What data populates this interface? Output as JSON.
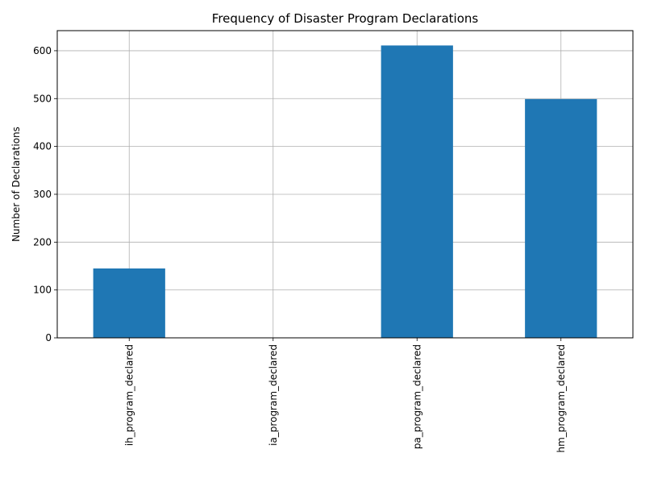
{
  "chart_data": {
    "type": "bar",
    "title": "Frequency of Disaster Program Declarations",
    "xlabel": "",
    "ylabel": "Number of Declarations",
    "categories": [
      "ih_program_declared",
      "ia_program_declared",
      "pa_program_declared",
      "hm_program_declared"
    ],
    "values": [
      145,
      0,
      611,
      499
    ],
    "ylim": [
      0,
      642
    ],
    "yticks": [
      0,
      100,
      200,
      300,
      400,
      500,
      600
    ],
    "grid": true,
    "bar_color": "#1f77b4",
    "grid_color": "#b0b0b0"
  }
}
